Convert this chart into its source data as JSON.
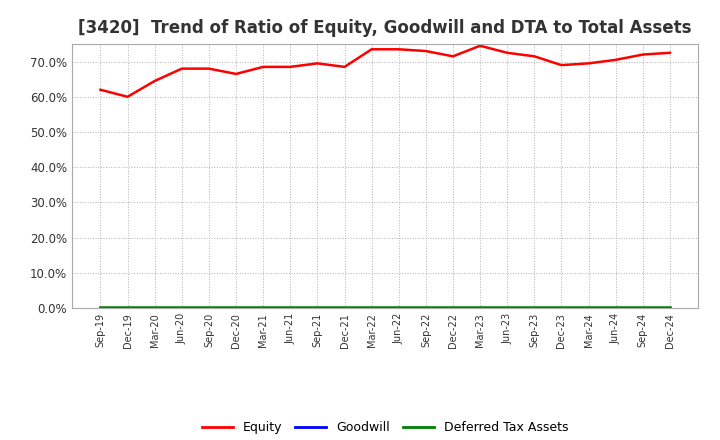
{
  "title": "[3420]  Trend of Ratio of Equity, Goodwill and DTA to Total Assets",
  "x_labels": [
    "Sep-19",
    "Dec-19",
    "Mar-20",
    "Jun-20",
    "Sep-20",
    "Dec-20",
    "Mar-21",
    "Jun-21",
    "Sep-21",
    "Dec-21",
    "Mar-22",
    "Jun-22",
    "Sep-22",
    "Dec-22",
    "Mar-23",
    "Jun-23",
    "Sep-23",
    "Dec-23",
    "Mar-24",
    "Jun-24",
    "Sep-24",
    "Dec-24"
  ],
  "equity": [
    62.0,
    60.0,
    64.5,
    68.0,
    68.0,
    66.5,
    68.5,
    68.5,
    69.5,
    68.5,
    73.5,
    73.5,
    73.0,
    71.5,
    74.5,
    72.5,
    71.5,
    69.0,
    69.5,
    70.5,
    72.0,
    72.5
  ],
  "goodwill": [
    0.0,
    0.0,
    0.0,
    0.0,
    0.0,
    0.0,
    0.0,
    0.0,
    0.0,
    0.0,
    0.0,
    0.0,
    0.0,
    0.0,
    0.0,
    0.0,
    0.0,
    0.0,
    0.0,
    0.0,
    0.0,
    0.0
  ],
  "dta": [
    0.3,
    0.3,
    0.3,
    0.3,
    0.3,
    0.3,
    0.3,
    0.3,
    0.3,
    0.3,
    0.3,
    0.3,
    0.3,
    0.3,
    0.3,
    0.3,
    0.3,
    0.3,
    0.3,
    0.3,
    0.3,
    0.3
  ],
  "equity_color": "#FF0000",
  "goodwill_color": "#0000FF",
  "dta_color": "#008000",
  "ylim": [
    0,
    75
  ],
  "yticks": [
    0,
    10,
    20,
    30,
    40,
    50,
    60,
    70
  ],
  "bg_color": "#FFFFFF",
  "plot_bg_color": "#FFFFFF",
  "grid_color": "#AAAAAA",
  "title_fontsize": 12,
  "legend_labels": [
    "Equity",
    "Goodwill",
    "Deferred Tax Assets"
  ]
}
